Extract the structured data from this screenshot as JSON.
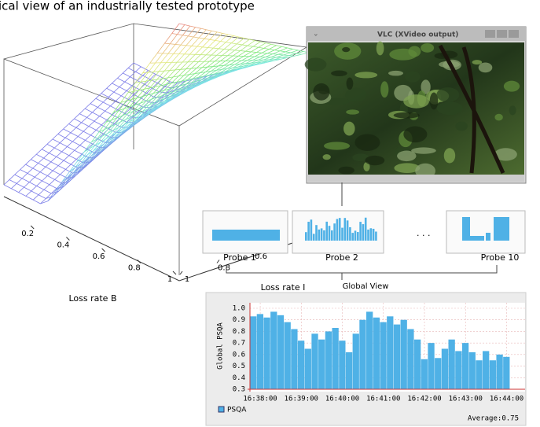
{
  "caption": "ical  view of an industrially tested prototype",
  "vlc_window": {
    "title": "VLC (XVideo output)"
  },
  "probes": [
    "Probe 1",
    "Probe 2",
    "Probe 10"
  ],
  "probes_ellipsis": ". . .",
  "global_view": "Global View",
  "chart_data": [
    {
      "type": "surface",
      "xlabel": "Loss rate B",
      "ylabel": "Loss rate I",
      "xlim": [
        0,
        1
      ],
      "ylim": [
        0,
        1
      ],
      "xticks": [
        0.2,
        0.4,
        0.6,
        0.8,
        1
      ],
      "yticks": [
        0.6,
        0.8,
        1
      ]
    },
    {
      "type": "bar",
      "ylabel": "Global  PSQA",
      "x": [
        "16:37:50",
        "16:38:00",
        "16:38:10",
        "16:38:20",
        "16:38:30",
        "16:38:40",
        "16:38:50",
        "16:39:00",
        "16:39:10",
        "16:39:20",
        "16:39:30",
        "16:39:40",
        "16:39:50",
        "16:40:00",
        "16:40:10",
        "16:40:20",
        "16:40:30",
        "16:40:40",
        "16:40:50",
        "16:41:00",
        "16:41:10",
        "16:41:20",
        "16:41:30",
        "16:41:40",
        "16:41:50",
        "16:42:00",
        "16:42:10",
        "16:42:20",
        "16:42:30",
        "16:42:40",
        "16:42:50",
        "16:43:00",
        "16:43:10",
        "16:43:20",
        "16:43:30",
        "16:43:40",
        "16:43:50",
        "16:44:00"
      ],
      "series": [
        {
          "name": "PSQA",
          "color": "#4fb1e6",
          "values": [
            0.93,
            0.95,
            0.92,
            0.97,
            0.94,
            0.88,
            0.82,
            0.72,
            0.65,
            0.78,
            0.73,
            0.8,
            0.83,
            0.72,
            0.62,
            0.78,
            0.9,
            0.97,
            0.92,
            0.88,
            0.93,
            0.86,
            0.9,
            0.82,
            0.73,
            0.56,
            0.7,
            0.57,
            0.65,
            0.73,
            0.63,
            0.7,
            0.62,
            0.55,
            0.63,
            0.55,
            0.6,
            0.58
          ]
        }
      ],
      "xlim": [
        "16:37:45",
        "16:44:27"
      ],
      "xticks": [
        "16:38:00",
        "16:39:00",
        "16:40:00",
        "16:41:00",
        "16:42:00",
        "16:43:00",
        "16:44:00"
      ],
      "ylim": [
        0.3,
        1.0
      ],
      "yticks": [
        {
          "value": 1,
          "label": "1.0"
        },
        0.9,
        0.8,
        0.7,
        0.6,
        0.5,
        0.4,
        0.3
      ],
      "grid": true,
      "annotation": "Average:0.75"
    }
  ]
}
